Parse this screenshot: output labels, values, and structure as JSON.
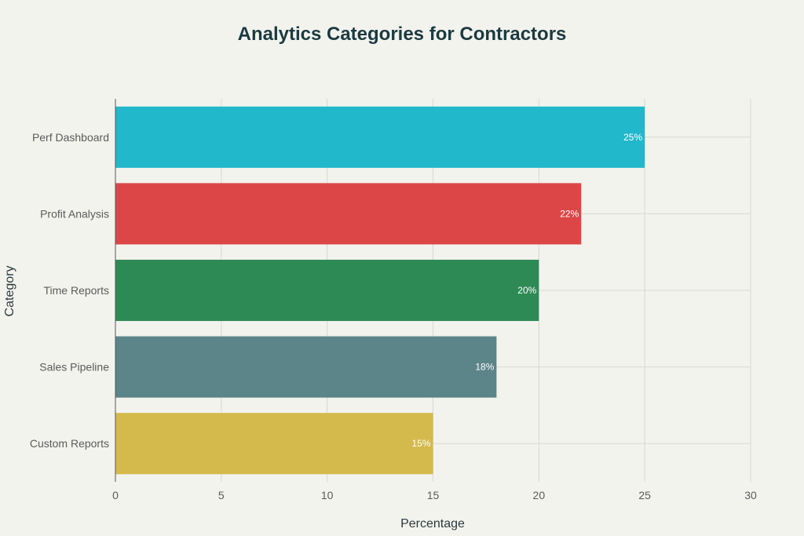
{
  "chart_data": {
    "type": "bar",
    "orientation": "horizontal",
    "title": "Analytics Categories for Contractors",
    "xlabel": "Percentage",
    "ylabel": "Category",
    "xlim": [
      0,
      30
    ],
    "xticks": [
      0,
      5,
      10,
      15,
      20,
      25,
      30
    ],
    "categories": [
      "Perf Dashboard",
      "Profit Analysis",
      "Time Reports",
      "Sales Pipeline",
      "Custom Reports"
    ],
    "values": [
      25,
      22,
      20,
      18,
      15
    ],
    "data_labels": [
      "25%",
      "22%",
      "20%",
      "18%",
      "15%"
    ],
    "colors": [
      "#21b8cc",
      "#dd4646",
      "#2e8a55",
      "#5c8589",
      "#d4ba4c"
    ],
    "grid": true,
    "legend": "none"
  }
}
